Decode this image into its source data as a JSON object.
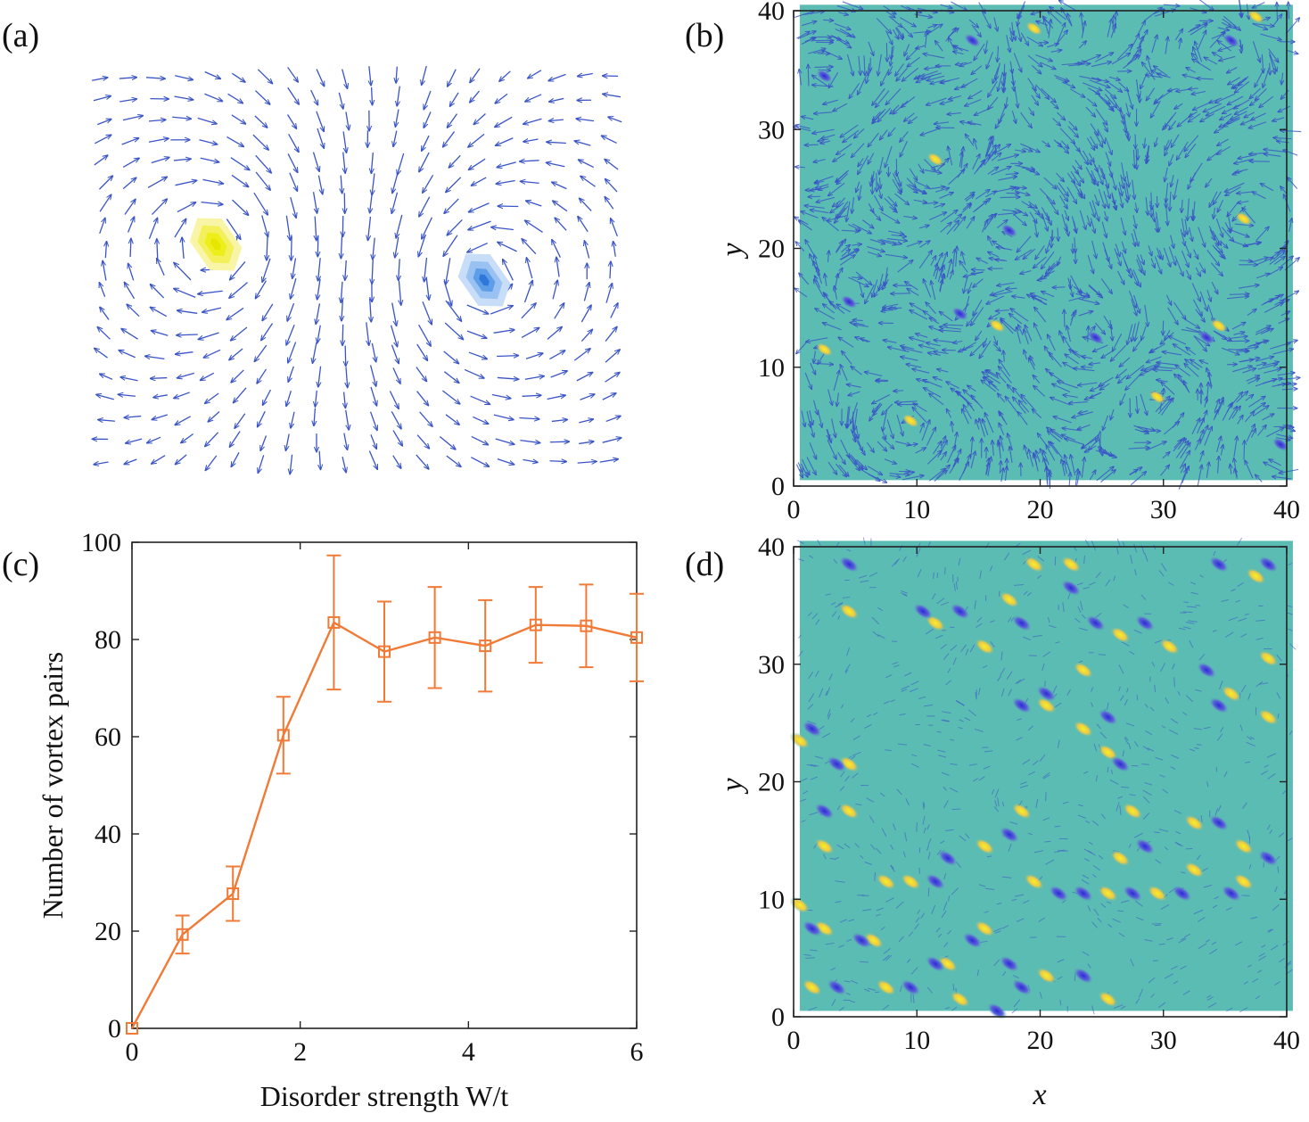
{
  "panels": {
    "a": {
      "label": "(a)"
    },
    "b": {
      "label": "(b)",
      "xlabel": "",
      "ylabel": "y"
    },
    "c": {
      "label": "(c)"
    },
    "d": {
      "label": "(d)",
      "xlabel": "x",
      "ylabel": "y"
    }
  },
  "colors": {
    "background_field": "#5bbcb3",
    "arrow": "#3a54c6",
    "vortex_positive": "#f6e629",
    "vortex_negative": "#2d2fd0",
    "line": "#f07a36"
  },
  "chart_data": [
    {
      "id": "a",
      "type": "heatmap",
      "description_kind": "quiver",
      "features": [
        {
          "kind": "vortex",
          "sign": "positive",
          "color": "#f1f000"
        },
        {
          "kind": "antivortex",
          "sign": "negative",
          "color": "#4a90e8"
        }
      ]
    },
    {
      "id": "b",
      "type": "heatmap",
      "xlim": [
        0,
        40
      ],
      "ylim": [
        0,
        40
      ],
      "xticks": [
        0,
        10,
        20,
        30,
        40
      ],
      "yticks": [
        0,
        10,
        20,
        30,
        40
      ],
      "ylabel": "y",
      "vortices_positive": [
        [
          19.5,
          38.5
        ],
        [
          37.5,
          39.5
        ],
        [
          11.5,
          27.5
        ],
        [
          36.5,
          22.5
        ],
        [
          16.5,
          13.5
        ],
        [
          2.5,
          11.5
        ],
        [
          34.5,
          13.5
        ],
        [
          29.5,
          7.5
        ],
        [
          9.5,
          5.5
        ]
      ],
      "vortices_negative": [
        [
          14.5,
          37.5
        ],
        [
          35.5,
          37.5
        ],
        [
          2.5,
          34.5
        ],
        [
          17.5,
          21.5
        ],
        [
          4.5,
          15.5
        ],
        [
          13.5,
          14.5
        ],
        [
          24.5,
          12.5
        ],
        [
          33.5,
          12.5
        ],
        [
          39.5,
          3.5
        ]
      ]
    },
    {
      "id": "c",
      "type": "line",
      "xlabel": "Disorder strength W/t",
      "ylabel": "Number of vortex pairs",
      "xlim": [
        0,
        6
      ],
      "ylim": [
        0,
        100
      ],
      "xticks": [
        0,
        2,
        4,
        6
      ],
      "yticks": [
        0,
        20,
        40,
        60,
        80,
        100
      ],
      "x": [
        0,
        0.6,
        1.2,
        1.8,
        2.4,
        3.0,
        3.6,
        4.2,
        4.8,
        5.4,
        6.0
      ],
      "series": [
        {
          "values": [
            0,
            19.3,
            27.7,
            60.3,
            83.5,
            77.5,
            80.4,
            78.7,
            83.0,
            82.8,
            80.4
          ],
          "errors": [
            0,
            3.9,
            5.6,
            7.9,
            13.8,
            10.3,
            10.4,
            9.4,
            7.8,
            8.5,
            9.0
          ],
          "marker": "square",
          "color": "#f07a36"
        }
      ]
    },
    {
      "id": "d",
      "type": "heatmap",
      "xlim": [
        0,
        40
      ],
      "ylim": [
        0,
        40
      ],
      "xticks": [
        0,
        10,
        20,
        30,
        40
      ],
      "yticks": [
        0,
        10,
        20,
        30,
        40
      ],
      "xlabel": "x",
      "ylabel": "y",
      "vortices_positive": [
        [
          19.5,
          38.5
        ],
        [
          22.5,
          38.5
        ],
        [
          17.5,
          35.5
        ],
        [
          4.5,
          34.5
        ],
        [
          11.5,
          33.5
        ],
        [
          15.5,
          31.5
        ],
        [
          26.5,
          32.5
        ],
        [
          30.5,
          31.5
        ],
        [
          23.5,
          29.5
        ],
        [
          37.5,
          37.5
        ],
        [
          38.5,
          30.5
        ],
        [
          35.5,
          27.5
        ],
        [
          38.5,
          25.5
        ],
        [
          20.5,
          26.5
        ],
        [
          23.5,
          24.5
        ],
        [
          25.5,
          22.5
        ],
        [
          0.5,
          23.5
        ],
        [
          4.5,
          21.5
        ],
        [
          4.5,
          17.5
        ],
        [
          2.5,
          14.5
        ],
        [
          18.5,
          17.5
        ],
        [
          15.5,
          14.5
        ],
        [
          27.5,
          17.5
        ],
        [
          32.5,
          16.5
        ],
        [
          36.5,
          14.5
        ],
        [
          26.5,
          13.5
        ],
        [
          9.5,
          11.5
        ],
        [
          19.5,
          11.5
        ],
        [
          25.5,
          10.5
        ],
        [
          29.5,
          10.5
        ],
        [
          32.5,
          12.5
        ],
        [
          36.5,
          11.5
        ],
        [
          7.5,
          11.5
        ],
        [
          0.5,
          9.5
        ],
        [
          2.5,
          7.5
        ],
        [
          6.5,
          6.5
        ],
        [
          15.5,
          7.5
        ],
        [
          12.5,
          4.5
        ],
        [
          1.5,
          2.5
        ],
        [
          7.5,
          2.5
        ],
        [
          13.5,
          1.5
        ],
        [
          20.5,
          3.5
        ],
        [
          25.5,
          1.5
        ]
      ],
      "vortices_negative": [
        [
          4.5,
          38.5
        ],
        [
          22.5,
          36.5
        ],
        [
          34.5,
          38.5
        ],
        [
          38.5,
          38.5
        ],
        [
          10.5,
          34.5
        ],
        [
          13.5,
          34.5
        ],
        [
          18.5,
          33.5
        ],
        [
          24.5,
          33.5
        ],
        [
          28.5,
          33.5
        ],
        [
          33.5,
          29.5
        ],
        [
          34.5,
          26.5
        ],
        [
          20.5,
          27.5
        ],
        [
          25.5,
          25.5
        ],
        [
          18.5,
          26.5
        ],
        [
          1.5,
          24.5
        ],
        [
          3.5,
          21.5
        ],
        [
          26.5,
          21.5
        ],
        [
          2.5,
          17.5
        ],
        [
          17.5,
          15.5
        ],
        [
          28.5,
          14.5
        ],
        [
          34.5,
          16.5
        ],
        [
          38.5,
          13.5
        ],
        [
          12.5,
          13.5
        ],
        [
          11.5,
          11.5
        ],
        [
          21.5,
          10.5
        ],
        [
          23.5,
          10.5
        ],
        [
          27.5,
          10.5
        ],
        [
          31.5,
          10.5
        ],
        [
          35.5,
          10.5
        ],
        [
          1.5,
          7.5
        ],
        [
          5.5,
          6.5
        ],
        [
          14.5,
          6.5
        ],
        [
          11.5,
          4.5
        ],
        [
          17.5,
          4.5
        ],
        [
          23.5,
          3.5
        ],
        [
          3.5,
          2.5
        ],
        [
          9.5,
          2.5
        ],
        [
          16.5,
          0.5
        ],
        [
          18.5,
          2.5
        ]
      ]
    }
  ]
}
